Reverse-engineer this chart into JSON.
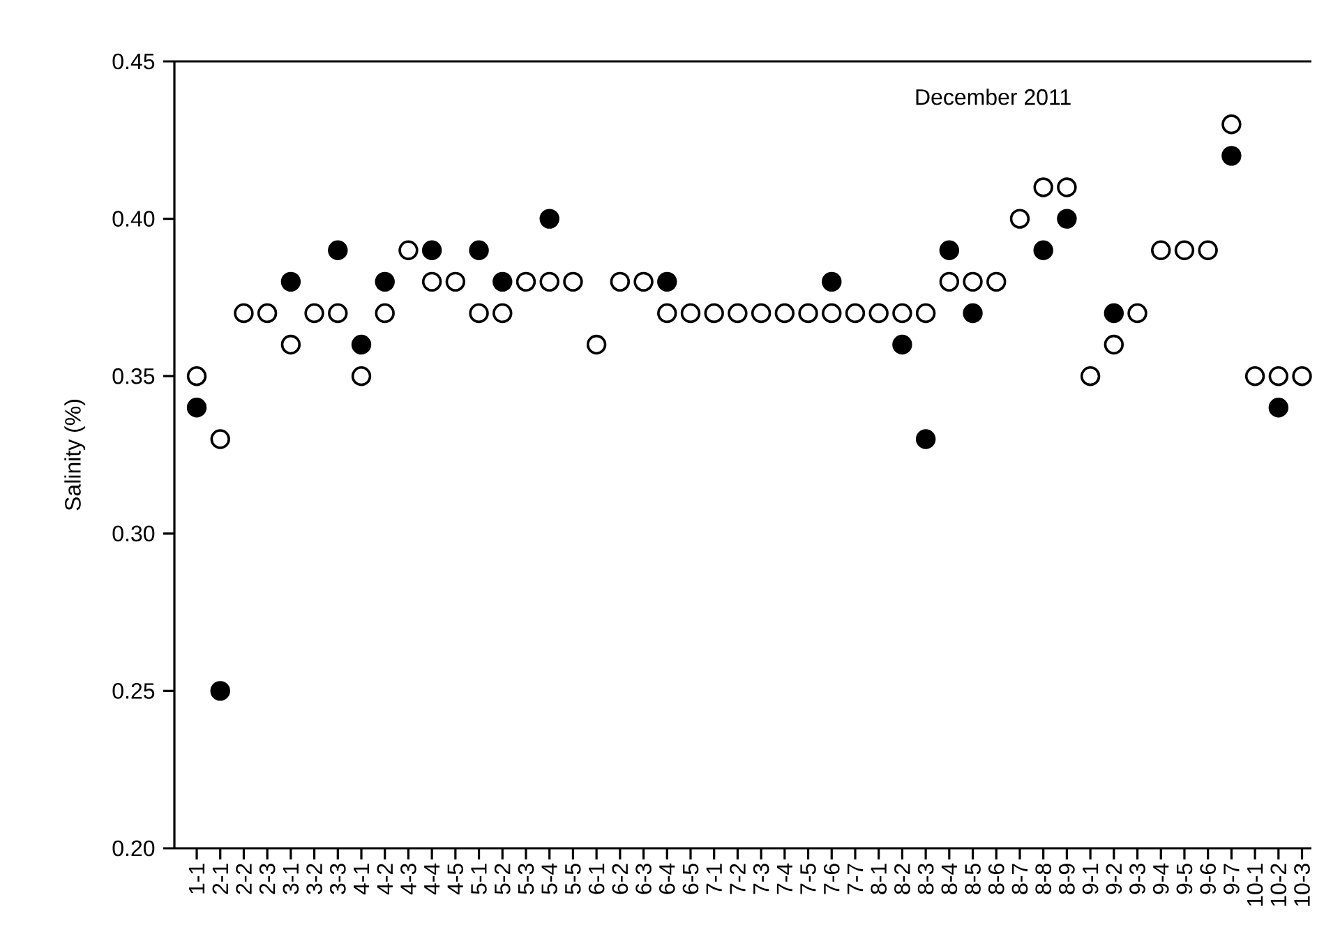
{
  "chart_data": {
    "type": "scatter",
    "ylabel": "Salinity (%)",
    "annotations": [
      "December 2011"
    ],
    "marker": "circle",
    "categories": [
      "1-1",
      "2-1",
      "2-2",
      "2-3",
      "3-1",
      "3-2",
      "3-3",
      "4-1",
      "4-2",
      "4-3",
      "4-4",
      "4-5",
      "5-1",
      "5-2",
      "5-3",
      "5-4",
      "5-5",
      "6-1",
      "6-2",
      "6-3",
      "6-4",
      "6-5",
      "7-1",
      "7-2",
      "7-3",
      "7-4",
      "7-5",
      "7-6",
      "7-7",
      "8-1",
      "8-2",
      "8-3",
      "8-4",
      "8-5",
      "8-6",
      "8-7",
      "8-8",
      "8-9",
      "9-1",
      "9-2",
      "9-3",
      "9-4",
      "9-5",
      "9-6",
      "9-7",
      "10-1",
      "10-2",
      "10-3"
    ],
    "ylim": [
      0.2,
      0.45
    ],
    "yticks": [
      {
        "value": 0.2,
        "label": "0.20"
      },
      {
        "value": 0.25,
        "label": "0.25"
      },
      {
        "value": 0.3,
        "label": "0.30"
      },
      {
        "value": 0.35,
        "label": "0.35"
      },
      {
        "value": 0.4,
        "label": "0.40"
      },
      {
        "value": 0.45,
        "label": "0.45"
      }
    ],
    "series": [
      {
        "color": "#ffffff",
        "values": [
          0.35,
          0.33,
          0.37,
          0.37,
          0.36,
          0.37,
          0.37,
          0.35,
          0.37,
          0.39,
          0.38,
          0.38,
          0.37,
          0.37,
          0.38,
          0.38,
          0.38,
          0.36,
          0.38,
          0.38,
          0.37,
          0.37,
          0.37,
          0.37,
          0.37,
          0.37,
          0.37,
          0.37,
          0.37,
          0.37,
          0.37,
          0.37,
          0.38,
          0.38,
          0.38,
          0.4,
          0.41,
          0.41,
          0.35,
          0.36,
          0.37,
          0.39,
          0.39,
          0.39,
          0.43,
          0.35,
          0.35,
          0.35
        ]
      },
      {
        "color": "#000000",
        "values": [
          0.34,
          0.25,
          null,
          null,
          0.38,
          null,
          0.39,
          0.36,
          0.38,
          null,
          0.39,
          null,
          0.39,
          0.38,
          null,
          0.4,
          null,
          null,
          null,
          null,
          0.38,
          null,
          null,
          null,
          null,
          null,
          null,
          0.38,
          null,
          null,
          0.36,
          0.33,
          0.39,
          0.37,
          null,
          null,
          0.39,
          0.4,
          null,
          0.37,
          null,
          null,
          null,
          null,
          0.42,
          null,
          0.34,
          null
        ]
      }
    ]
  }
}
